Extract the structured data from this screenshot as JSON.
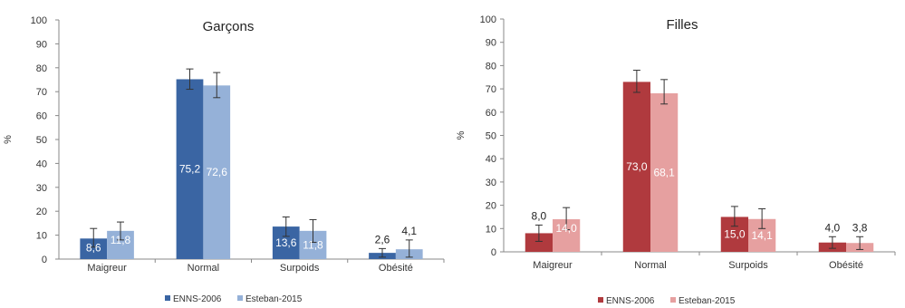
{
  "chart_data": [
    {
      "type": "bar",
      "title": "Garçons",
      "ylabel": "%",
      "ylim": [
        0,
        100
      ],
      "yticks": [
        0,
        10,
        20,
        30,
        40,
        50,
        60,
        70,
        80,
        90,
        100
      ],
      "grid": false,
      "legend_position": "bottom",
      "categories": [
        "Maigreur",
        "Normal",
        "Surpoids",
        "Obésité"
      ],
      "series": [
        {
          "name": "ENNS-2006",
          "color": "#3a65a3",
          "values": [
            8.6,
            75.2,
            13.6,
            2.6
          ],
          "labels": [
            "8,6",
            "75,2",
            "13,6",
            "2,6"
          ],
          "error_low": [
            5.0,
            71.0,
            9.5,
            0.8
          ],
          "error_high": [
            12.8,
            79.5,
            17.6,
            4.4
          ]
        },
        {
          "name": "Esteban-2015",
          "color": "#95b1d8",
          "values": [
            11.8,
            72.6,
            11.8,
            4.1
          ],
          "labels": [
            "11,8",
            "72,6",
            "11,8",
            "4,1"
          ],
          "error_low": [
            8.0,
            67.5,
            7.0,
            0.8
          ],
          "error_high": [
            15.5,
            78.0,
            16.5,
            8.0
          ]
        }
      ]
    },
    {
      "type": "bar",
      "title": "Filles",
      "ylabel": "%",
      "ylim": [
        0,
        100
      ],
      "yticks": [
        0,
        10,
        20,
        30,
        40,
        50,
        60,
        70,
        80,
        90,
        100
      ],
      "grid": false,
      "legend_position": "bottom",
      "categories": [
        "Maigreur",
        "Normal",
        "Surpoids",
        "Obésité"
      ],
      "series": [
        {
          "name": "ENNS-2006",
          "color": "#b03a3e",
          "values": [
            8.0,
            73.0,
            15.0,
            4.0
          ],
          "labels": [
            "8,0",
            "73,0",
            "15,0",
            "4,0"
          ],
          "error_low": [
            4.5,
            68.5,
            11.0,
            1.5
          ],
          "error_high": [
            11.5,
            78.0,
            19.5,
            6.5
          ]
        },
        {
          "name": "Esteban-2015",
          "color": "#e6a0a0",
          "values": [
            14.0,
            68.1,
            14.1,
            3.8
          ],
          "labels": [
            "14,0",
            "68,1",
            "14,1",
            "3,8"
          ],
          "error_low": [
            9.5,
            63.5,
            10.0,
            1.0
          ],
          "error_high": [
            19.0,
            74.0,
            18.5,
            6.5
          ]
        }
      ]
    }
  ]
}
